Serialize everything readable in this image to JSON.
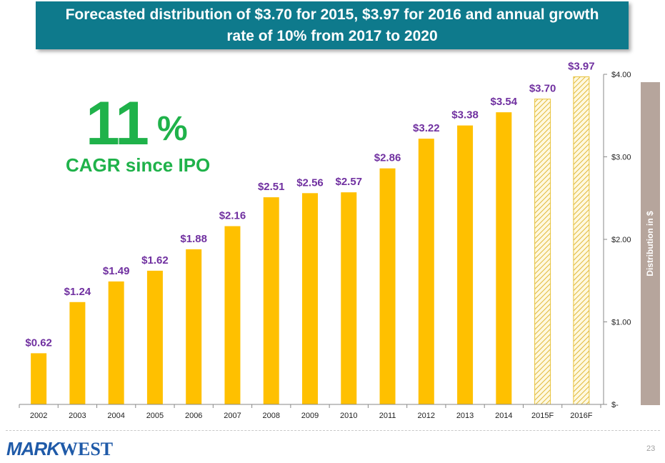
{
  "banner": {
    "title": "Forecasted distribution of $3.70 for 2015, $3.97 for 2016 and annual growth rate of 10% from 2017 to 2020"
  },
  "cagr": {
    "value": "11",
    "percent_sign": "%",
    "label": "CAGR since IPO"
  },
  "chart_data": {
    "type": "bar",
    "title": "Forecasted distribution of $3.70 for 2015, $3.97 for 2016 and annual growth rate of 10% from 2017 to 2020",
    "categories": [
      "2002",
      "2003",
      "2004",
      "2005",
      "2006",
      "2007",
      "2008",
      "2009",
      "2010",
      "2011",
      "2012",
      "2013",
      "2014",
      "2015F",
      "2016F"
    ],
    "values": [
      0.62,
      1.24,
      1.49,
      1.62,
      1.88,
      2.16,
      2.51,
      2.56,
      2.57,
      2.86,
      3.22,
      3.38,
      3.54,
      3.7,
      3.97
    ],
    "value_labels": [
      "$0.62",
      "$1.24",
      "$1.49",
      "$1.62",
      "$1.88",
      "$2.16",
      "$2.51",
      "$2.56",
      "$2.57",
      "$2.86",
      "$3.22",
      "$3.38",
      "$3.54",
      "$3.70",
      "$3.97"
    ],
    "forecast": [
      false,
      false,
      false,
      false,
      false,
      false,
      false,
      false,
      false,
      false,
      false,
      false,
      false,
      true,
      true
    ],
    "ylabel": "Distribution in $",
    "xlabel": "",
    "ylim": [
      0,
      4
    ],
    "y_ticks": [
      0,
      1,
      2,
      3,
      4
    ],
    "y_tick_labels": [
      "$-",
      "$1.00",
      "$2.00",
      "$3.00",
      "$4.00"
    ],
    "y_axis_side": "right",
    "grid": false,
    "colors": {
      "bar": "#ffc000",
      "forecast_hatch": "#e8c23a",
      "value_label": "#7030a0",
      "axis": "#888888"
    }
  },
  "footer": {
    "logo_mark": "MARK",
    "logo_word": "WEST",
    "page_number": "23"
  }
}
